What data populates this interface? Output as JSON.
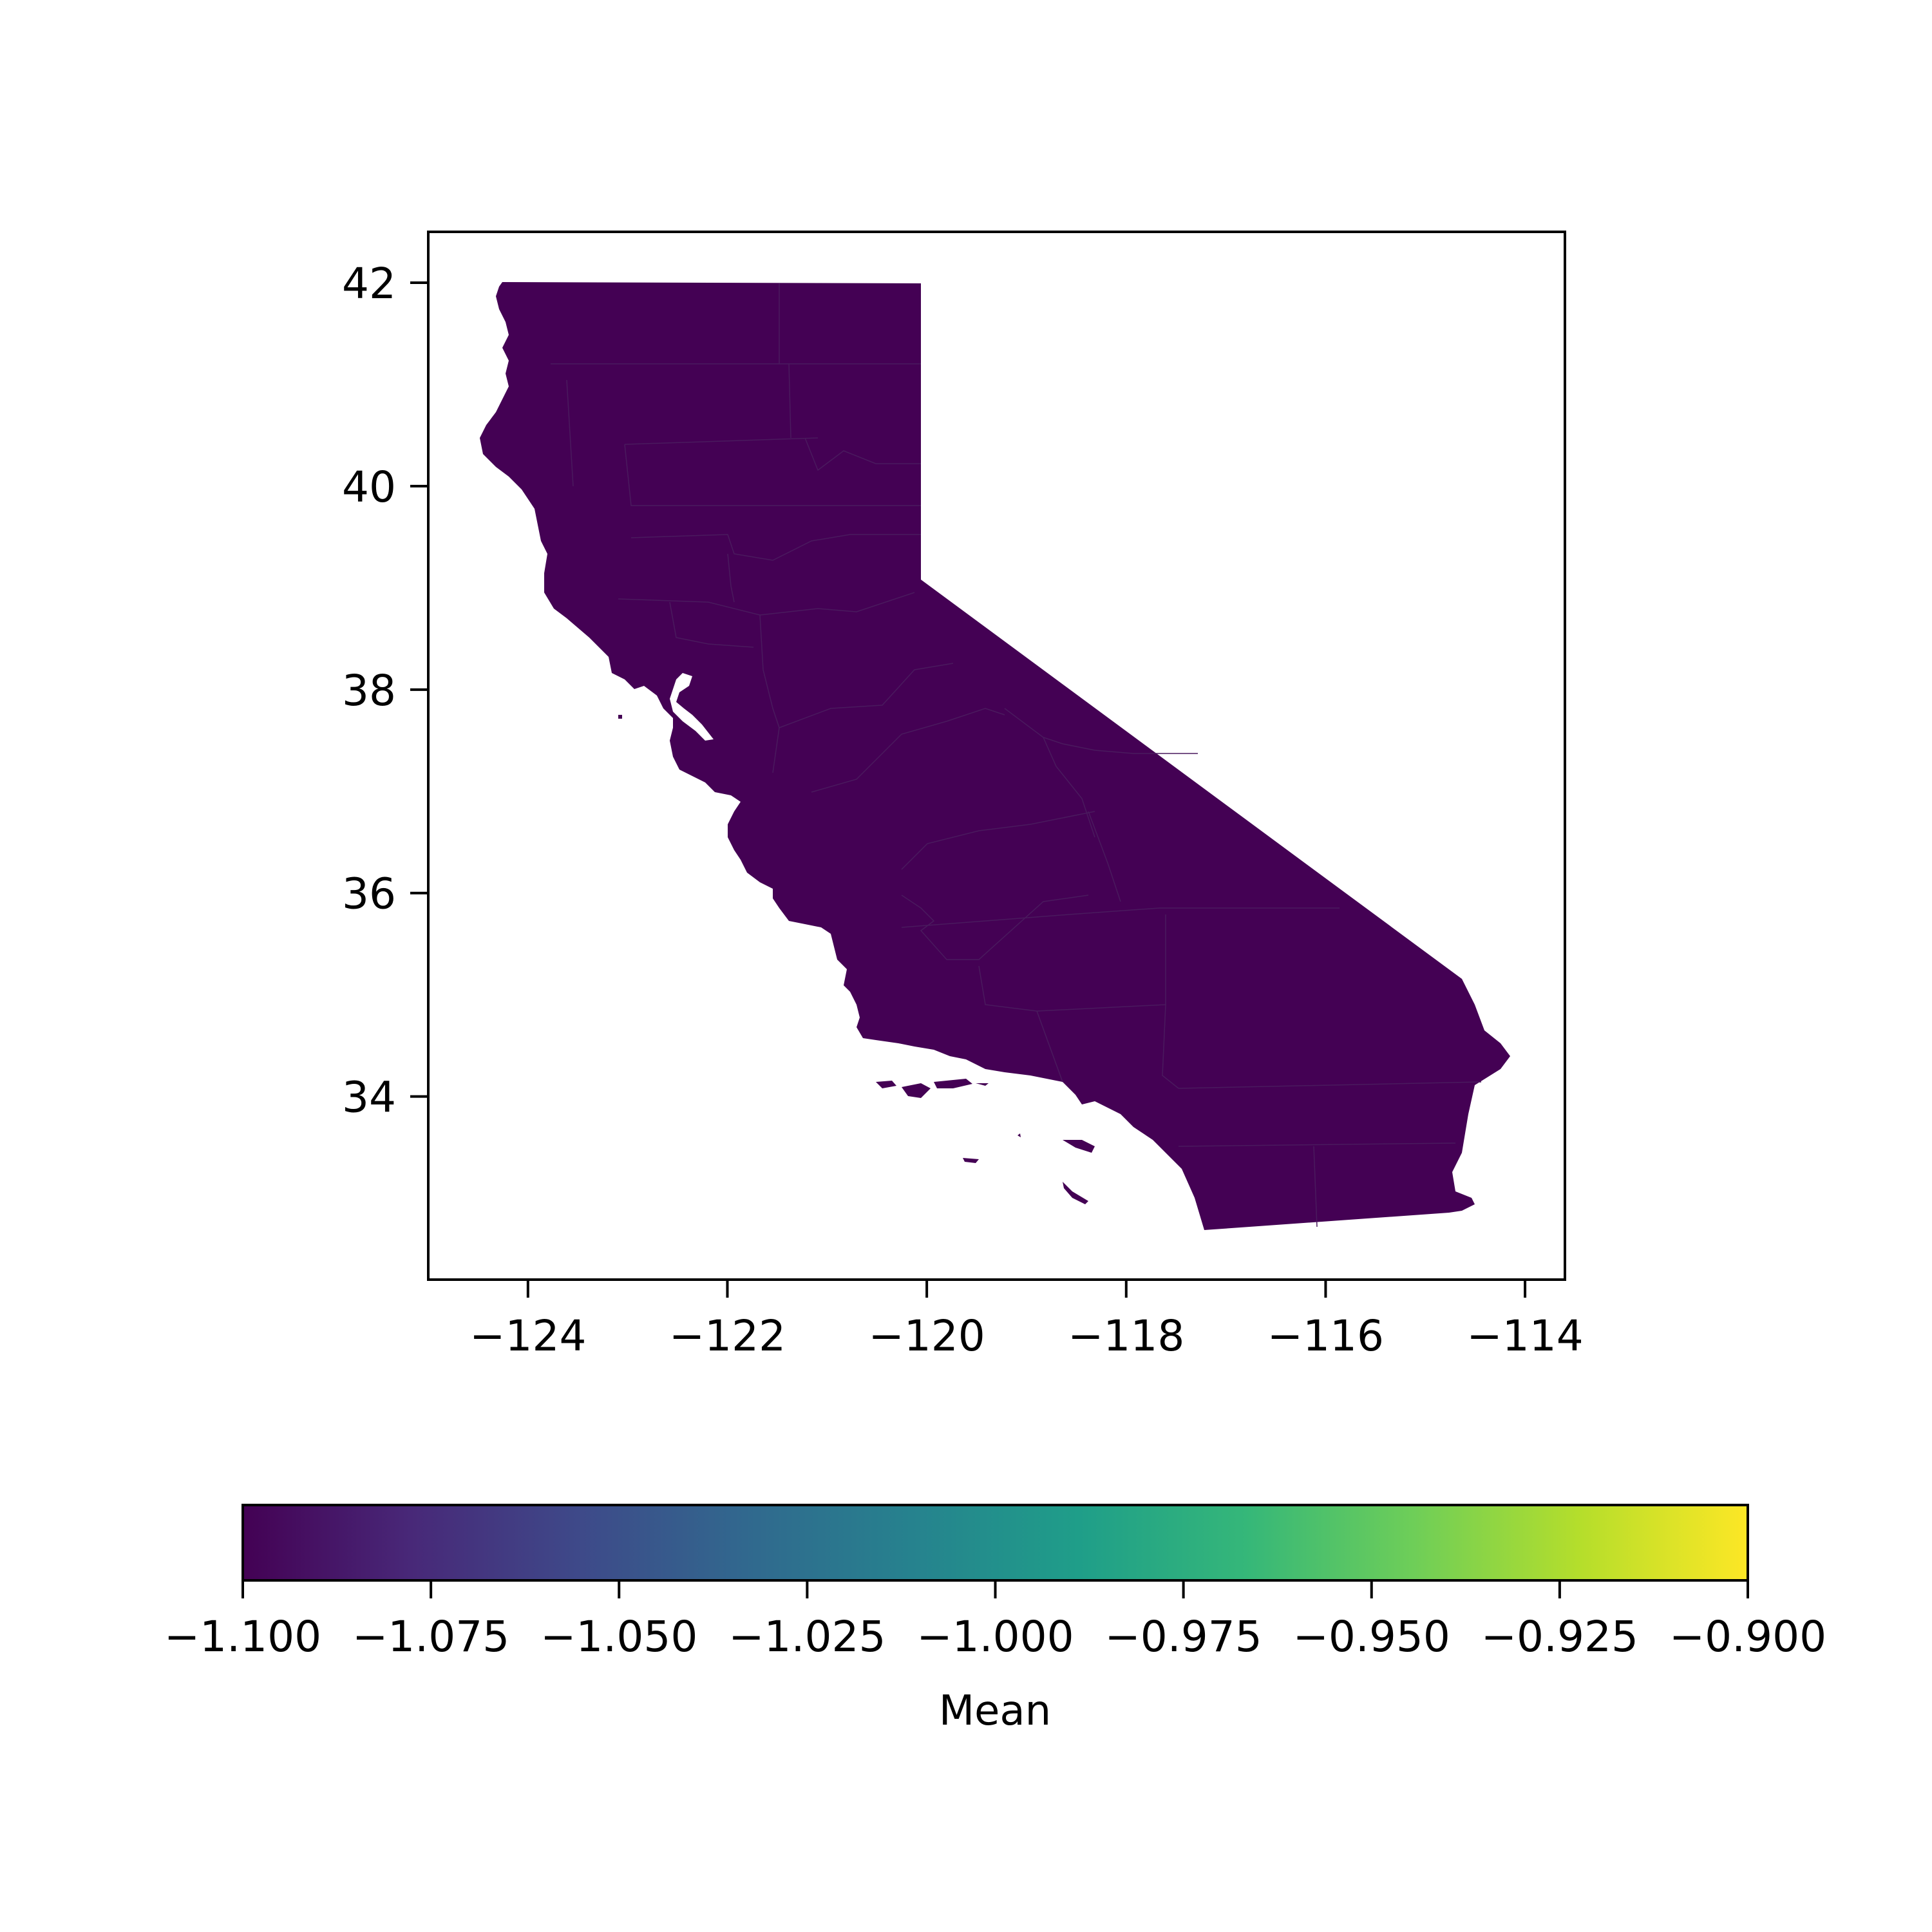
{
  "map": {
    "xlim": [
      -125.0,
      -113.6
    ],
    "ylim": [
      32.2,
      42.5
    ],
    "x_ticks": [
      -124,
      -122,
      -120,
      -118,
      -116,
      -114
    ],
    "y_ticks": [
      34,
      36,
      38,
      40,
      42
    ],
    "x_tick_labels": [
      "−124",
      "−122",
      "−120",
      "−118",
      "−116",
      "−114"
    ],
    "y_tick_labels": [
      "34",
      "36",
      "38",
      "40",
      "42"
    ],
    "fill_color": "#440154",
    "edge_color": "#4a1a5e",
    "region": "California counties"
  },
  "colorbar": {
    "label": "Mean",
    "range": [
      -1.1,
      -0.9
    ],
    "ticks": [
      -1.1,
      -1.075,
      -1.05,
      -1.025,
      -1.0,
      -0.975,
      -0.95,
      -0.925,
      -0.9
    ],
    "tick_labels": [
      "−1.100",
      "−1.075",
      "−1.050",
      "−1.025",
      "−1.000",
      "−0.975",
      "−0.950",
      "−0.925",
      "−0.900"
    ],
    "colormap": "viridis",
    "colors": [
      "#440154",
      "#482878",
      "#3e4989",
      "#31688e",
      "#26828e",
      "#1f9e89",
      "#35b779",
      "#6ece58",
      "#b5de2b",
      "#fde725"
    ]
  }
}
